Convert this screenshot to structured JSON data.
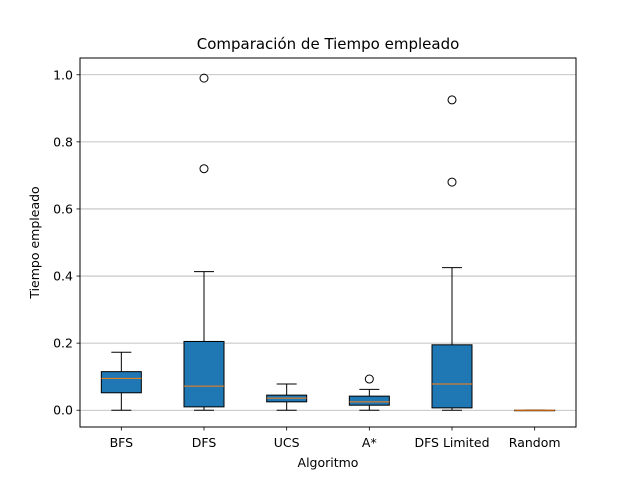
{
  "chart_data": {
    "type": "boxplot",
    "title": "Comparación de Tiempo empleado",
    "xlabel": "Algoritmo",
    "ylabel": "Tiempo empleado",
    "ylim": [
      -0.05,
      1.05
    ],
    "yticks": [
      0.0,
      0.2,
      0.4,
      0.6,
      0.8,
      1.0
    ],
    "ytick_labels": [
      "0.0",
      "0.2",
      "0.4",
      "0.6",
      "0.8",
      "1.0"
    ],
    "grid": "y",
    "box_color": "#1f77b4",
    "median_color": "#ff7f0e",
    "categories": [
      "BFS",
      "DFS",
      "UCS",
      "A*",
      "DFS Limited",
      "Random"
    ],
    "boxes": [
      {
        "name": "BFS",
        "whisker_low": 0.0,
        "q1": 0.052,
        "median": 0.095,
        "q3": 0.115,
        "whisker_high": 0.173,
        "outliers": []
      },
      {
        "name": "DFS",
        "whisker_low": 0.0,
        "q1": 0.01,
        "median": 0.072,
        "q3": 0.205,
        "whisker_high": 0.413,
        "outliers": [
          0.72,
          0.99
        ]
      },
      {
        "name": "UCS",
        "whisker_low": 0.0,
        "q1": 0.025,
        "median": 0.036,
        "q3": 0.045,
        "whisker_high": 0.078,
        "outliers": []
      },
      {
        "name": "A*",
        "whisker_low": 0.0,
        "q1": 0.015,
        "median": 0.025,
        "q3": 0.042,
        "whisker_high": 0.062,
        "outliers": [
          0.093
        ]
      },
      {
        "name": "DFS Limited",
        "whisker_low": 0.0,
        "q1": 0.007,
        "median": 0.078,
        "q3": 0.195,
        "whisker_high": 0.425,
        "outliers": [
          0.68,
          0.925
        ]
      },
      {
        "name": "Random",
        "whisker_low": 0.0,
        "q1": 0.0,
        "median": 0.0,
        "q3": 0.0,
        "whisker_high": 0.0,
        "outliers": []
      }
    ]
  }
}
